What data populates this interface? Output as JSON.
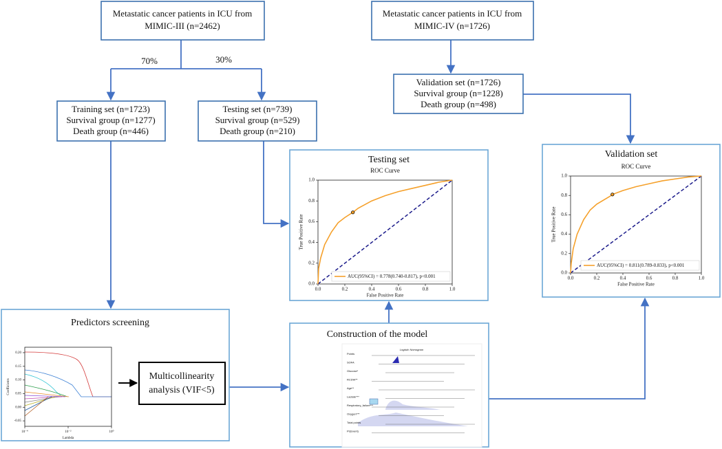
{
  "boxes": {
    "mimic3": {
      "lines": [
        "Metastatic cancer patients in ICU from",
        "MIMIC-III (n=2462)"
      ]
    },
    "mimic4": {
      "lines": [
        "Metastatic cancer patients in ICU from",
        "MIMIC-IV (n=1726)"
      ]
    },
    "training": {
      "lines": [
        "Training set (n=1723)",
        "Survival group (n=1277)",
        "Death group (n=446)"
      ]
    },
    "testing": {
      "lines": [
        "Testing set (n=739)",
        "Survival group (n=529)",
        "Death group (n=210)"
      ]
    },
    "validation": {
      "lines": [
        "Validation set (n=1726)",
        "Survival group (n=1228)",
        "Death group (n=498)"
      ]
    },
    "multicollinearity": {
      "lines": [
        "Multicollinearity",
        "analysis (VIF<5)"
      ]
    }
  },
  "split_labels": [
    "70%",
    "30%"
  ],
  "testing_panel": {
    "heading": "Testing set",
    "chart": {
      "type": "line",
      "title": "ROC Curve",
      "xlabel": "False Positive Rate",
      "ylabel": "True Positive Rate",
      "x": [
        0,
        0.005,
        0.02,
        0.05,
        0.1,
        0.15,
        0.2,
        0.26,
        0.3,
        0.4,
        0.5,
        0.6,
        0.7,
        0.8,
        0.9,
        1.0
      ],
      "series": [
        {
          "name": "AUC(95%CI) = 0.778(0.740-0.817), p<0.001",
          "color": "#f5a02a",
          "values": [
            0,
            0.15,
            0.25,
            0.38,
            0.5,
            0.59,
            0.64,
            0.69,
            0.73,
            0.8,
            0.85,
            0.89,
            0.92,
            0.95,
            0.98,
            1.0
          ]
        }
      ],
      "cutoff": {
        "x": 0.26,
        "y": 0.69
      },
      "xlim": [
        0,
        1
      ],
      "ylim": [
        0,
        1
      ],
      "xticks": [
        {
          "value": 0,
          "label": "0.0"
        },
        0.2,
        0.4,
        0.6,
        0.8,
        {
          "value": 1,
          "label": "1.0"
        }
      ],
      "yticks": [
        {
          "value": 0,
          "label": "0.0"
        },
        0.2,
        0.4,
        0.6,
        0.8,
        {
          "value": 1,
          "label": "1.0"
        }
      ],
      "legend": "lower right"
    }
  },
  "validation_panel": {
    "heading": "Validation set",
    "chart": {
      "type": "line",
      "title": "ROC Curve",
      "xlabel": "False Positive Rate",
      "ylabel": "True Positive Rate",
      "x": [
        0,
        0.005,
        0.02,
        0.05,
        0.1,
        0.15,
        0.2,
        0.3,
        0.32,
        0.4,
        0.5,
        0.6,
        0.7,
        0.8,
        0.9,
        1.0
      ],
      "series": [
        {
          "name": "AUC(95%CI) = 0.811(0.789-0.833), p<0.001",
          "color": "#f5a02a",
          "values": [
            0,
            0.1,
            0.25,
            0.4,
            0.55,
            0.65,
            0.71,
            0.79,
            0.81,
            0.85,
            0.89,
            0.92,
            0.95,
            0.97,
            0.99,
            1.0
          ]
        }
      ],
      "cutoff": {
        "x": 0.32,
        "y": 0.81
      },
      "xlim": [
        0,
        1
      ],
      "ylim": [
        0,
        1
      ],
      "xticks": [
        {
          "value": 0,
          "label": "0.0"
        },
        0.2,
        0.4,
        0.6,
        0.8,
        {
          "value": 1,
          "label": "1.0"
        }
      ],
      "yticks": [
        {
          "value": 0,
          "label": "0.0"
        },
        0.2,
        0.4,
        0.6,
        0.8,
        {
          "value": 1,
          "label": "1.0"
        }
      ],
      "legend": "lower right"
    }
  },
  "screening_panel": {
    "heading": "Predictors screening",
    "chart": {
      "type": "line",
      "xlabel": "Lambda",
      "ylabel": "Coefficients",
      "xlog": true,
      "xlim": [
        0.0001,
        1
      ],
      "ylim": [
        -0.07,
        0.22
      ],
      "xticks": [
        {
          "value": 0.0001,
          "label": "10⁻⁴"
        },
        {
          "value": 0.01,
          "label": "10⁻²"
        },
        {
          "value": 1,
          "label": "10⁰"
        }
      ],
      "yticks": [
        {
          "value": 0.2,
          "label": "0.20"
        },
        0.15,
        {
          "value": 0.1,
          "label": "0.10"
        },
        0.05,
        {
          "value": 0,
          "label": "0.00"
        },
        -0.05
      ]
    }
  },
  "model_panel": {
    "heading": "Construction of the model",
    "nomogram": {
      "title": "Logistic Nomogram",
      "rows": [
        "Points",
        "SOFA",
        "Glucose*",
        "RCDW**",
        "Age**",
        "Lactate***",
        "Respiratory_failure***",
        "Oxygen***",
        "Total points",
        "Pr(Event)"
      ]
    }
  }
}
